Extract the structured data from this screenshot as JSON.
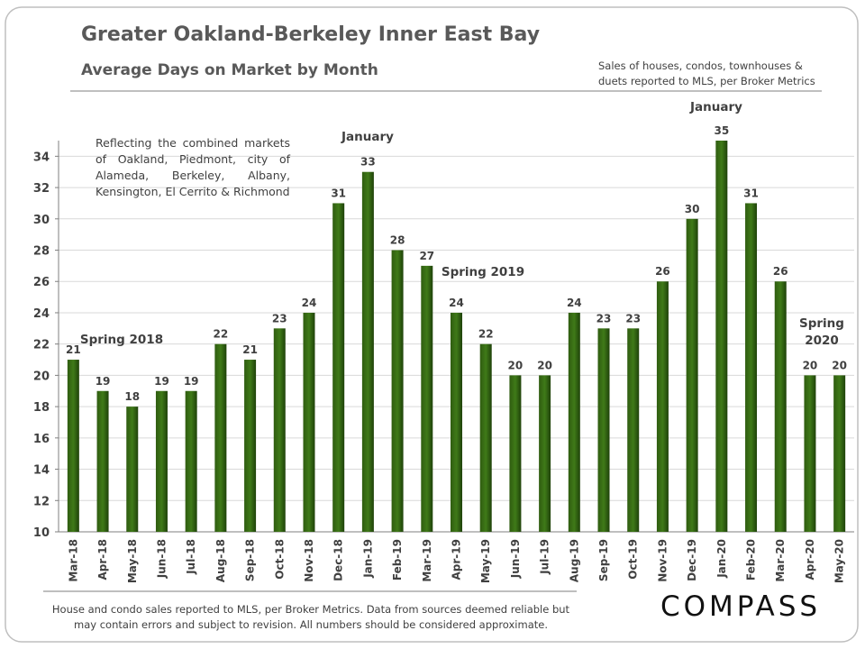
{
  "chart_data": {
    "type": "bar",
    "title": "Greater Oakland-Berkeley Inner East Bay",
    "subtitle": "Average Days on Market by Month",
    "source_note": "Sales of houses, condos, townhouses & duets reported to MLS, per Broker Metrics",
    "footnote": "House and condo sales reported to MLS, per Broker Metrics. Data from sources deemed reliable but may contain errors and subject to revision. All numbers should be considered approximate.",
    "logo": "COMPASS",
    "categories": [
      "Mar-18",
      "Apr-18",
      "May-18",
      "Jun-18",
      "Jul-18",
      "Aug-18",
      "Sep-18",
      "Oct-18",
      "Nov-18",
      "Dec-18",
      "Jan-19",
      "Feb-19",
      "Mar-19",
      "Apr-19",
      "May-19",
      "Jun-19",
      "Jul-19",
      "Aug-19",
      "Sep-19",
      "Oct-19",
      "Nov-19",
      "Dec-19",
      "Jan-20",
      "Feb-20",
      "Mar-20",
      "Apr-20",
      "May-20"
    ],
    "values": [
      21,
      19,
      18,
      19,
      19,
      22,
      21,
      23,
      24,
      31,
      33,
      28,
      27,
      24,
      22,
      20,
      20,
      24,
      23,
      23,
      26,
      30,
      35,
      31,
      26,
      20,
      20
    ],
    "color": "#2f5c10",
    "ylim": [
      10,
      35
    ],
    "yticks": [
      10,
      12,
      14,
      16,
      18,
      20,
      22,
      24,
      26,
      28,
      30,
      32,
      34
    ],
    "grid": true,
    "annotations": [
      "Reflecting the combined markets of Oakland, Piedmont, city of Alameda, Berkeley, Albany, Kensington, El Cerrito & Richmond",
      "Spring 2018",
      "January",
      "Spring 2019",
      "January",
      "Spring 2020"
    ]
  }
}
